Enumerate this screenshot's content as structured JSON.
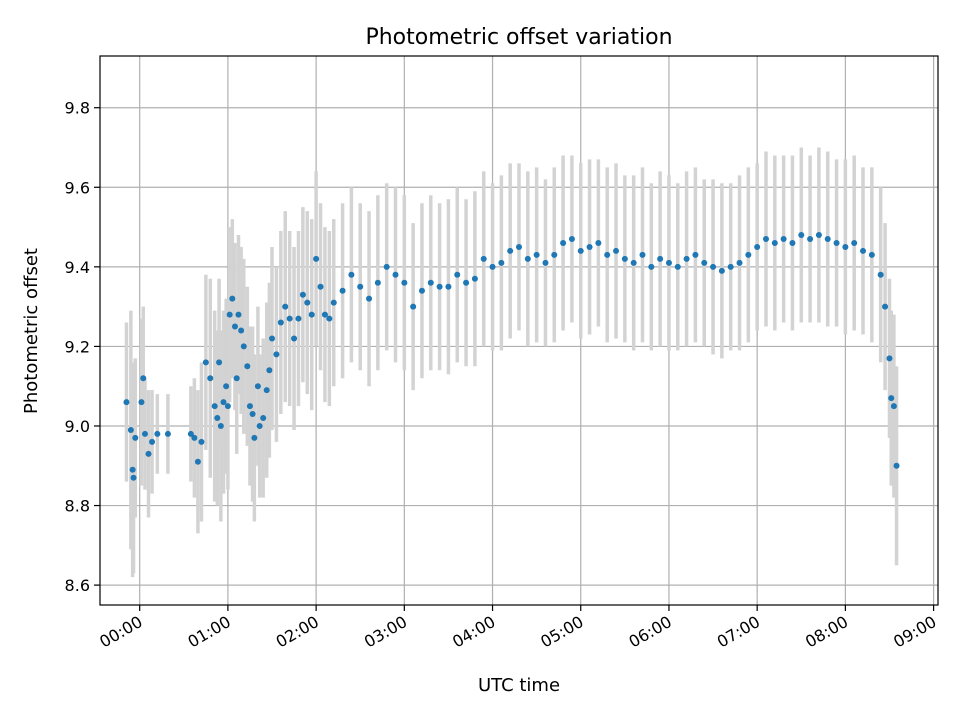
{
  "chart_data": {
    "type": "scatter",
    "title": "Photometric offset variation",
    "xlabel": "UTC time",
    "ylabel": "Photometric offset",
    "x_unit": "hours (UTC)",
    "xlim": [
      -0.45,
      9.05
    ],
    "ylim": [
      8.55,
      9.93
    ],
    "x_ticks": [
      {
        "value": 0,
        "label": "00:00"
      },
      {
        "value": 1,
        "label": "01:00"
      },
      {
        "value": 2,
        "label": "02:00"
      },
      {
        "value": 3,
        "label": "03:00"
      },
      {
        "value": 4,
        "label": "04:00"
      },
      {
        "value": 5,
        "label": "05:00"
      },
      {
        "value": 6,
        "label": "06:00"
      },
      {
        "value": 7,
        "label": "07:00"
      },
      {
        "value": 8,
        "label": "08:00"
      },
      {
        "value": 9,
        "label": "09:00"
      }
    ],
    "y_ticks": [
      {
        "value": 8.6,
        "label": "8.6"
      },
      {
        "value": 8.8,
        "label": "8.8"
      },
      {
        "value": 9.0,
        "label": "9.0"
      },
      {
        "value": 9.2,
        "label": "9.2"
      },
      {
        "value": 9.4,
        "label": "9.4"
      },
      {
        "value": 9.6,
        "label": "9.6"
      },
      {
        "value": 9.8,
        "label": "9.8"
      }
    ],
    "grid": true,
    "colors": {
      "points": "#1f77b4",
      "errorbars": "#d3d3d3"
    },
    "series": [
      {
        "points": [
          [
            -0.15,
            9.06,
            0.2
          ],
          [
            -0.1,
            8.99,
            0.3
          ],
          [
            -0.08,
            8.89,
            0.27
          ],
          [
            -0.07,
            8.87,
            0.24
          ],
          [
            -0.05,
            8.97,
            0.2
          ],
          [
            0.02,
            9.06,
            0.21
          ],
          [
            0.04,
            9.12,
            0.18
          ],
          [
            0.06,
            8.98,
            0.14
          ],
          [
            0.1,
            8.93,
            0.16
          ],
          [
            0.14,
            8.96,
            0.13
          ],
          [
            0.2,
            8.98,
            0.1
          ],
          [
            0.32,
            8.98,
            0.1
          ],
          [
            0.58,
            8.98,
            0.12
          ],
          [
            0.62,
            8.97,
            0.15
          ],
          [
            0.66,
            8.91,
            0.18
          ],
          [
            0.7,
            8.96,
            0.2
          ],
          [
            0.75,
            9.16,
            0.22
          ],
          [
            0.8,
            9.12,
            0.25
          ],
          [
            0.85,
            9.05,
            0.24
          ],
          [
            0.88,
            9.02,
            0.22
          ],
          [
            0.9,
            9.16,
            0.21
          ],
          [
            0.92,
            9.0,
            0.24
          ],
          [
            0.95,
            9.06,
            0.23
          ],
          [
            0.98,
            9.1,
            0.22
          ],
          [
            1.0,
            9.05,
            0.21
          ],
          [
            1.02,
            9.28,
            0.22
          ],
          [
            1.05,
            9.32,
            0.2
          ],
          [
            1.08,
            9.25,
            0.21
          ],
          [
            1.1,
            9.12,
            0.19
          ],
          [
            1.12,
            9.28,
            0.2
          ],
          [
            1.15,
            9.24,
            0.21
          ],
          [
            1.18,
            9.2,
            0.22
          ],
          [
            1.22,
            9.15,
            0.2
          ],
          [
            1.25,
            9.05,
            0.2
          ],
          [
            1.28,
            9.03,
            0.22
          ],
          [
            1.3,
            8.97,
            0.21
          ],
          [
            1.34,
            9.1,
            0.2
          ],
          [
            1.36,
            9.0,
            0.18
          ],
          [
            1.4,
            9.02,
            0.2
          ],
          [
            1.44,
            9.09,
            0.22
          ],
          [
            1.47,
            9.14,
            0.22
          ],
          [
            1.5,
            9.22,
            0.23
          ],
          [
            1.55,
            9.18,
            0.22
          ],
          [
            1.6,
            9.26,
            0.23
          ],
          [
            1.65,
            9.3,
            0.24
          ],
          [
            1.7,
            9.27,
            0.22
          ],
          [
            1.75,
            9.22,
            0.23
          ],
          [
            1.8,
            9.27,
            0.22
          ],
          [
            1.85,
            9.33,
            0.22
          ],
          [
            1.9,
            9.31,
            0.23
          ],
          [
            1.95,
            9.28,
            0.24
          ],
          [
            2.0,
            9.42,
            0.22
          ],
          [
            2.05,
            9.35,
            0.21
          ],
          [
            2.1,
            9.28,
            0.22
          ],
          [
            2.15,
            9.27,
            0.22
          ],
          [
            2.2,
            9.31,
            0.21
          ],
          [
            2.3,
            9.34,
            0.22
          ],
          [
            2.4,
            9.38,
            0.22
          ],
          [
            2.5,
            9.35,
            0.21
          ],
          [
            2.6,
            9.32,
            0.22
          ],
          [
            2.7,
            9.36,
            0.22
          ],
          [
            2.8,
            9.4,
            0.21
          ],
          [
            2.9,
            9.38,
            0.22
          ],
          [
            3.0,
            9.36,
            0.22
          ],
          [
            3.1,
            9.3,
            0.21
          ],
          [
            3.2,
            9.34,
            0.22
          ],
          [
            3.3,
            9.36,
            0.22
          ],
          [
            3.4,
            9.35,
            0.21
          ],
          [
            3.5,
            9.35,
            0.22
          ],
          [
            3.6,
            9.38,
            0.22
          ],
          [
            3.7,
            9.36,
            0.21
          ],
          [
            3.8,
            9.37,
            0.22
          ],
          [
            3.9,
            9.42,
            0.22
          ],
          [
            4.0,
            9.4,
            0.21
          ],
          [
            4.1,
            9.41,
            0.22
          ],
          [
            4.2,
            9.44,
            0.22
          ],
          [
            4.3,
            9.45,
            0.21
          ],
          [
            4.4,
            9.42,
            0.22
          ],
          [
            4.5,
            9.43,
            0.22
          ],
          [
            4.6,
            9.41,
            0.21
          ],
          [
            4.7,
            9.43,
            0.22
          ],
          [
            4.8,
            9.46,
            0.22
          ],
          [
            4.9,
            9.47,
            0.21
          ],
          [
            5.0,
            9.44,
            0.22
          ],
          [
            5.1,
            9.45,
            0.22
          ],
          [
            5.2,
            9.46,
            0.21
          ],
          [
            5.3,
            9.43,
            0.22
          ],
          [
            5.4,
            9.44,
            0.22
          ],
          [
            5.5,
            9.42,
            0.21
          ],
          [
            5.6,
            9.41,
            0.22
          ],
          [
            5.7,
            9.43,
            0.22
          ],
          [
            5.8,
            9.4,
            0.21
          ],
          [
            5.9,
            9.42,
            0.22
          ],
          [
            6.0,
            9.41,
            0.22
          ],
          [
            6.1,
            9.4,
            0.21
          ],
          [
            6.2,
            9.42,
            0.22
          ],
          [
            6.3,
            9.43,
            0.22
          ],
          [
            6.4,
            9.41,
            0.21
          ],
          [
            6.5,
            9.4,
            0.22
          ],
          [
            6.6,
            9.39,
            0.22
          ],
          [
            6.7,
            9.4,
            0.21
          ],
          [
            6.8,
            9.41,
            0.22
          ],
          [
            6.9,
            9.43,
            0.22
          ],
          [
            7.0,
            9.45,
            0.21
          ],
          [
            7.1,
            9.47,
            0.22
          ],
          [
            7.2,
            9.46,
            0.22
          ],
          [
            7.3,
            9.47,
            0.21
          ],
          [
            7.4,
            9.46,
            0.22
          ],
          [
            7.5,
            9.48,
            0.22
          ],
          [
            7.6,
            9.47,
            0.21
          ],
          [
            7.7,
            9.48,
            0.22
          ],
          [
            7.8,
            9.47,
            0.22
          ],
          [
            7.9,
            9.46,
            0.21
          ],
          [
            8.0,
            9.45,
            0.22
          ],
          [
            8.1,
            9.46,
            0.22
          ],
          [
            8.2,
            9.44,
            0.21
          ],
          [
            8.3,
            9.43,
            0.22
          ],
          [
            8.4,
            9.38,
            0.22
          ],
          [
            8.45,
            9.3,
            0.21
          ],
          [
            8.5,
            9.17,
            0.2
          ],
          [
            8.52,
            9.07,
            0.22
          ],
          [
            8.55,
            9.05,
            0.23
          ],
          [
            8.58,
            8.9,
            0.25
          ]
        ]
      }
    ]
  }
}
